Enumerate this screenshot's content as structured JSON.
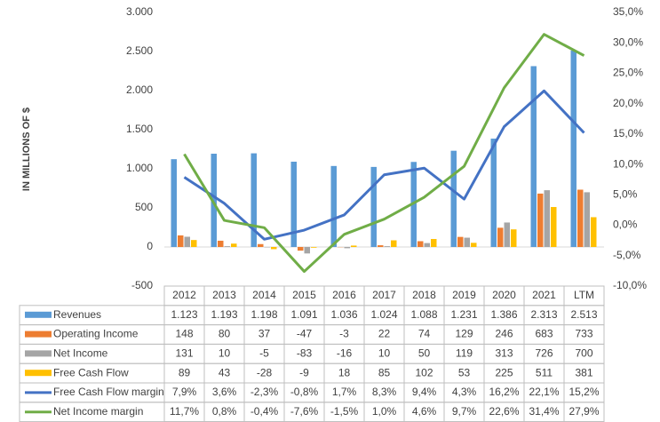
{
  "chart_data": {
    "type": "bar-line",
    "y_label": "IN MILLIONS OF $",
    "categories": [
      "2012",
      "2013",
      "2014",
      "2015",
      "2016",
      "2017",
      "2018",
      "2019",
      "2020",
      "2021",
      "LTM"
    ],
    "ylim": [
      -500,
      3000
    ],
    "yticks": [
      -500,
      0,
      500,
      {
        "value": 1000,
        "label": "1.000"
      },
      {
        "value": 1500,
        "label": "1.500"
      },
      {
        "value": 2000,
        "label": "2.000"
      },
      {
        "value": 2500,
        "label": "2.500"
      },
      {
        "value": 3000,
        "label": "3.000"
      }
    ],
    "y2lim": [
      -10,
      35
    ],
    "y2ticks": [
      {
        "value": -10,
        "label": "-10,0%"
      },
      {
        "value": -5,
        "label": "-5,0%"
      },
      {
        "value": 0,
        "label": "0,0%"
      },
      {
        "value": 5,
        "label": "5,0%"
      },
      {
        "value": 10,
        "label": "10,0%"
      },
      {
        "value": 15,
        "label": "15,0%"
      },
      {
        "value": 20,
        "label": "20,0%"
      },
      {
        "value": 25,
        "label": "25,0%"
      },
      {
        "value": 30,
        "label": "30,0%"
      },
      {
        "value": 35,
        "label": "35,0%"
      }
    ],
    "series": [
      {
        "name": "Revenues",
        "type": "bar",
        "color": "#5b9bd5",
        "values": [
          1123,
          1193,
          1198,
          1091,
          1036,
          1024,
          1088,
          1231,
          1386,
          2313,
          2513
        ],
        "value_labels": [
          "1.123",
          "1.193",
          "1.198",
          "1.091",
          "1.036",
          "1.024",
          "1.088",
          "1.231",
          "1.386",
          "2.313",
          "2.513"
        ]
      },
      {
        "name": "Operating Income",
        "type": "bar",
        "color": "#ed7d31",
        "values": [
          148,
          80,
          37,
          -47,
          -3,
          22,
          74,
          129,
          246,
          683,
          733
        ]
      },
      {
        "name": "Net Income",
        "type": "bar",
        "color": "#a5a5a5",
        "values": [
          131,
          10,
          -5,
          -83,
          -16,
          10,
          50,
          119,
          313,
          726,
          700
        ]
      },
      {
        "name": "Free Cash Flow",
        "type": "bar",
        "color": "#ffc000",
        "values": [
          89,
          43,
          -28,
          -9,
          18,
          85,
          102,
          53,
          225,
          511,
          381
        ]
      },
      {
        "name": "Free Cash Flow margin",
        "type": "line",
        "axis": "y2",
        "color": "#4472c4",
        "values": [
          7.9,
          3.6,
          -2.3,
          -0.8,
          1.7,
          8.3,
          9.4,
          4.3,
          16.2,
          22.1,
          15.2
        ],
        "value_labels": [
          "7,9%",
          "3,6%",
          "-2,3%",
          "-0,8%",
          "1,7%",
          "8,3%",
          "9,4%",
          "4,3%",
          "16,2%",
          "22,1%",
          "15,2%"
        ]
      },
      {
        "name": "Net Income margin",
        "type": "line",
        "axis": "y2",
        "color": "#70ad47",
        "values": [
          11.7,
          0.8,
          -0.4,
          -7.6,
          -1.5,
          1.0,
          4.6,
          9.7,
          22.6,
          31.4,
          27.9
        ],
        "value_labels": [
          "11,7%",
          "0,8%",
          "-0,4%",
          "-7,6%",
          "-1,5%",
          "1,0%",
          "4,6%",
          "9,7%",
          "22,6%",
          "31,4%",
          "27,9%"
        ]
      }
    ]
  }
}
